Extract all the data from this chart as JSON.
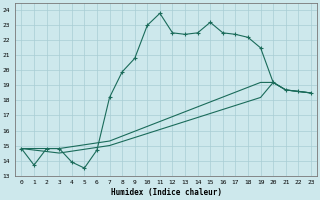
{
  "xlabel": "Humidex (Indice chaleur)",
  "bg_color": "#cde8ec",
  "grid_color": "#a8cdd4",
  "line_color": "#1a6b5a",
  "xlim": [
    -0.5,
    23.5
  ],
  "ylim": [
    13,
    24.5
  ],
  "yticks": [
    13,
    14,
    15,
    16,
    17,
    18,
    19,
    20,
    21,
    22,
    23,
    24
  ],
  "xticks": [
    0,
    1,
    2,
    3,
    4,
    5,
    6,
    7,
    8,
    9,
    10,
    11,
    12,
    13,
    14,
    15,
    16,
    17,
    18,
    19,
    20,
    21,
    22,
    23
  ],
  "line1_x": [
    0,
    1,
    2,
    3,
    4,
    5,
    6,
    7,
    8,
    9,
    10,
    11,
    12,
    13,
    14,
    15,
    16,
    17,
    18,
    19,
    20,
    21,
    22,
    23
  ],
  "line1_y": [
    14.8,
    13.7,
    14.8,
    14.8,
    13.9,
    13.5,
    14.7,
    18.2,
    19.9,
    20.8,
    23.0,
    23.8,
    22.5,
    22.4,
    22.5,
    23.2,
    22.5,
    22.4,
    22.2,
    21.5,
    19.2,
    18.7,
    18.6,
    18.5
  ],
  "line2_x": [
    0,
    3,
    7,
    19,
    20,
    21,
    22,
    23
  ],
  "line2_y": [
    14.8,
    14.8,
    15.3,
    19.2,
    19.2,
    18.7,
    18.6,
    18.5
  ],
  "line3_x": [
    0,
    3,
    7,
    19,
    20,
    21,
    22,
    23
  ],
  "line3_y": [
    14.8,
    14.5,
    15.0,
    18.2,
    19.2,
    18.7,
    18.6,
    18.5
  ],
  "xlabel_fontsize": 5.5,
  "tick_fontsize": 4.5
}
